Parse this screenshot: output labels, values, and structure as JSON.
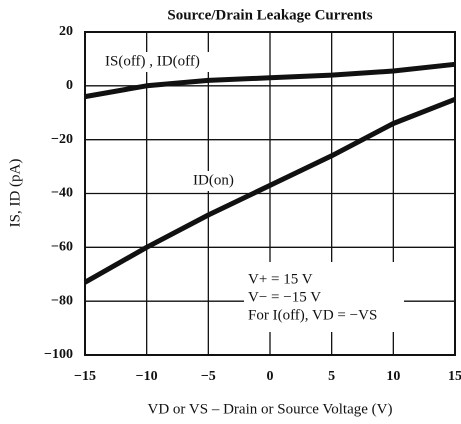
{
  "chart_data": {
    "type": "line",
    "title": "Source/Drain Leakage Currents",
    "xlabel": "VD or VS – Drain or Source Voltage (V)",
    "ylabel": "IS, ID (pA)",
    "x": [
      -15,
      -10,
      -5,
      0,
      5,
      10,
      15
    ],
    "series": [
      {
        "name": "IS(off) , ID(off)",
        "color": "#111111",
        "values": [
          -4,
          0,
          2,
          3,
          4,
          5.5,
          8
        ]
      },
      {
        "name": "ID(on)",
        "color": "#111111",
        "values": [
          -73,
          -60,
          -48,
          -37,
          -26,
          -14,
          -5
        ]
      }
    ],
    "xlim": [
      -15,
      15
    ],
    "xticks": [
      {
        "value": -15,
        "label": "−15"
      },
      {
        "value": -10,
        "label": "−10"
      },
      {
        "value": -5,
        "label": "−5"
      },
      0,
      5,
      10,
      15
    ],
    "ylim": [
      -100,
      20
    ],
    "yticks": [
      {
        "value": -100,
        "label": "−100"
      },
      {
        "value": -80,
        "label": "−80"
      },
      {
        "value": -60,
        "label": "−60"
      },
      {
        "value": -40,
        "label": "−40"
      },
      {
        "value": -20,
        "label": "−20"
      },
      0,
      20
    ],
    "grid": true,
    "annotations": [
      "V+ = 15 V",
      "V− = −15 V",
      "For I(off), VD = −VS"
    ]
  }
}
